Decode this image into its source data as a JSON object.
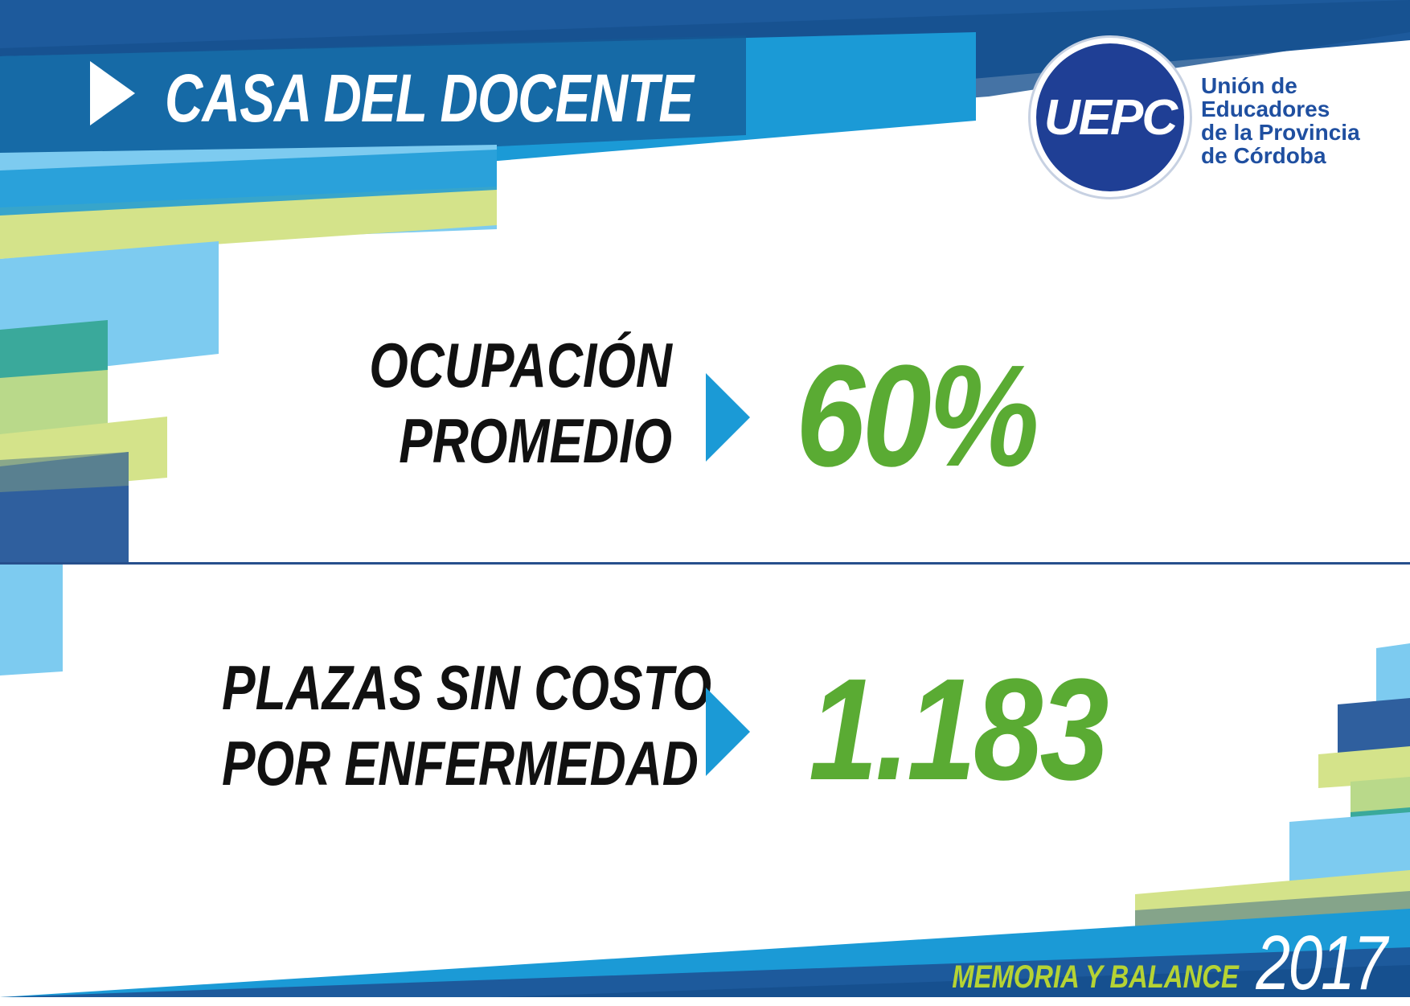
{
  "header": {
    "title": "CASA DEL DOCENTE"
  },
  "logo": {
    "acronym": "UEPC",
    "lines": [
      "Unión de",
      "Educadores",
      "de la Provincia",
      "de Córdoba"
    ]
  },
  "stats": [
    {
      "label_lines": [
        "OCUPACIÓN",
        "PROMEDIO"
      ],
      "value": "60%"
    },
    {
      "label_lines": [
        "PLAZAS SIN COSTO",
        "POR ENFERMEDAD"
      ],
      "value": "1.183"
    }
  ],
  "footer": {
    "label": "MEMORIA Y BALANCE",
    "year": "2017"
  },
  "colors": {
    "dark_blue": "#1f4f8f",
    "mid_blue": "#1b9ad6",
    "light_blue": "#7dcbf0",
    "lime": "#d4e38a",
    "teal": "#3aa99b",
    "green_value": "#5aab33",
    "logo_blue": "#1f3f95"
  }
}
